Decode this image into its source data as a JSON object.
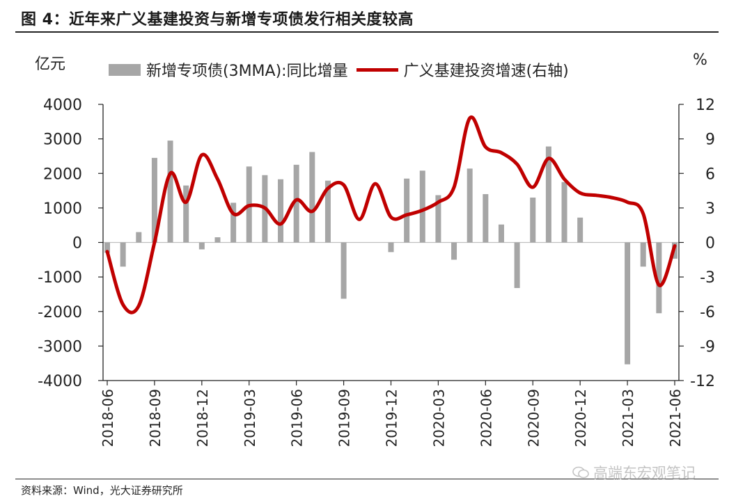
{
  "title": "图 4：近年来广义基建投资与新增专项债发行相关度较高",
  "left_unit": "亿元",
  "right_unit": "%",
  "legend": {
    "bar_label": "新增专项债(3MMA):同比增量",
    "line_label": "广义基建投资增速(右轴)"
  },
  "source": "资料来源：Wind，光大证券研究所",
  "watermark": "高端东宏观笔记",
  "colors": {
    "bar": "#a6a6a6",
    "line": "#c00000",
    "axis": "#222222"
  },
  "chart_data": {
    "type": "bar+line",
    "title": "近年来广义基建投资与新增专项债发行相关度较高",
    "categories": [
      "2018-06",
      "2018-07",
      "2018-08",
      "2018-09",
      "2018-10",
      "2018-11",
      "2018-12",
      "2019-01",
      "2019-02",
      "2019-03",
      "2019-04",
      "2019-05",
      "2019-06",
      "2019-07",
      "2019-08",
      "2019-09",
      "2019-10",
      "2019-11",
      "2019-12",
      "2020-01",
      "2020-02",
      "2020-03",
      "2020-04",
      "2020-05",
      "2020-06",
      "2020-07",
      "2020-08",
      "2020-09",
      "2020-10",
      "2020-11",
      "2020-12",
      "2021-01",
      "2021-02",
      "2021-03",
      "2021-04",
      "2021-05",
      "2021-06"
    ],
    "x_tick_labels": [
      "2018-06",
      "2018-09",
      "2018-12",
      "2019-03",
      "2019-06",
      "2019-09",
      "2019-12",
      "2020-03",
      "2020-06",
      "2020-09",
      "2020-12",
      "2021-03",
      "2021-06"
    ],
    "left_axis": {
      "label": "亿元",
      "ylim": [
        -4000,
        4000
      ],
      "ticks": [
        4000,
        3000,
        2000,
        1000,
        0,
        -1000,
        -2000,
        -3000,
        -4000
      ]
    },
    "right_axis": {
      "label": "%",
      "ylim": [
        -12,
        12
      ],
      "ticks": [
        12,
        9,
        6,
        3,
        0,
        -3,
        -6,
        -9,
        -12
      ]
    },
    "series": [
      {
        "name": "新增专项债(3MMA):同比增量",
        "type": "bar",
        "axis": "left",
        "values": [
          -300,
          -700,
          300,
          2450,
          2950,
          1650,
          -200,
          150,
          1150,
          2200,
          1950,
          1830,
          2250,
          2620,
          1790,
          -1630,
          0,
          0,
          -280,
          1850,
          2080,
          1370,
          -500,
          2140,
          1400,
          520,
          -1320,
          1300,
          2780,
          1750,
          720,
          0,
          0,
          -3530,
          -700,
          -2050,
          -470
        ]
      },
      {
        "name": "广义基建投资增速(右轴)",
        "type": "line",
        "axis": "right",
        "values": [
          -0.8,
          -5.4,
          -5.5,
          0,
          6,
          3.5,
          7.6,
          5.5,
          2.5,
          3.2,
          3,
          1.6,
          3.7,
          2.7,
          4.7,
          5,
          2,
          5.1,
          2.2,
          2.4,
          2.8,
          3.5,
          4.8,
          10.8,
          8.3,
          7.8,
          6.8,
          4.8,
          7.3,
          5.5,
          4.3,
          4.1,
          3.9,
          3.5,
          2.5,
          -3.7,
          -0.3
        ]
      }
    ]
  }
}
